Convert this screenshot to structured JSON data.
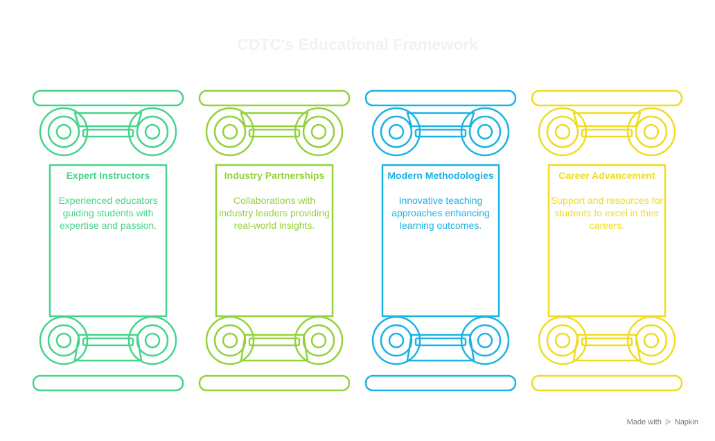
{
  "title": "CDTC's Educational Framework",
  "pillars": [
    {
      "title": "Expert Instructors",
      "description": "Experienced educators guiding students with expertise and passion.",
      "color": "#45d48a"
    },
    {
      "title": "Industry Partnerships",
      "description": "Collaborations with industry leaders providing real-world insights.",
      "color": "#93d23a"
    },
    {
      "title": "Modern Methodologies",
      "description": "Innovative teaching approaches enhancing learning outcomes.",
      "color": "#1ab3e3"
    },
    {
      "title": "Career Advancement",
      "description": "Support and resources for students to excel in their careers.",
      "color": "#f0dc1e"
    }
  ],
  "footer": {
    "text": "Made with",
    "brand": "Napkin",
    "icon": "napkin-logo-icon"
  }
}
